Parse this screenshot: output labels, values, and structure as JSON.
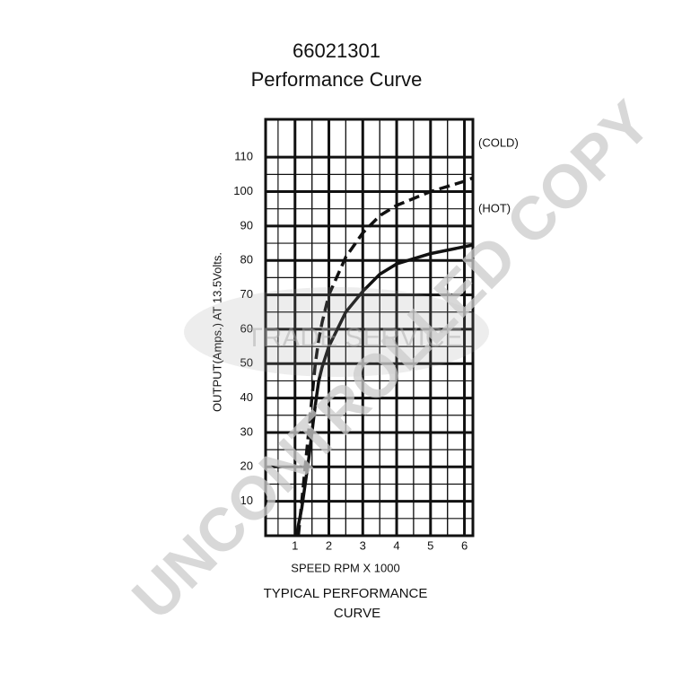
{
  "chart_data": {
    "type": "line",
    "title": "66021301",
    "subtitle": "Performance Curve",
    "x_label": "SPEED RPM X 1000",
    "y_label": "OUTPUT(Amps.) AT 13.5Volts.",
    "caption": [
      "TYPICAL PERFORMANCE",
      "CURVE"
    ],
    "watermark": [
      "UNCONTROLLED COPY",
      "TRADE SERVICE"
    ],
    "x": [
      1.05,
      1.1,
      1.2,
      1.3,
      1.4,
      1.5,
      1.6,
      1.7,
      1.8,
      2,
      2.5,
      3,
      3.5,
      4,
      5,
      6,
      6.25
    ],
    "series": [
      {
        "name": "(COLD)",
        "color": "#111111",
        "dashed": true,
        "values": [
          null,
          0,
          10,
          20,
          30,
          40,
          50,
          57,
          62,
          70,
          81,
          88,
          93,
          96,
          100,
          103,
          104
        ]
      },
      {
        "name": "(HOT)",
        "color": "#111111",
        "dashed": false,
        "values": [
          0,
          3,
          8,
          15,
          22,
          30,
          38,
          45,
          49,
          55,
          65,
          71,
          76,
          79,
          82,
          84,
          84.5
        ]
      }
    ],
    "xlim": [
      0,
      6.25
    ],
    "ylim": [
      0,
      121
    ],
    "xticks": [
      1,
      2,
      3,
      4,
      5,
      6
    ],
    "yticks": [
      10,
      20,
      30,
      40,
      50,
      60,
      70,
      80,
      90,
      100,
      110
    ],
    "grid": true
  }
}
